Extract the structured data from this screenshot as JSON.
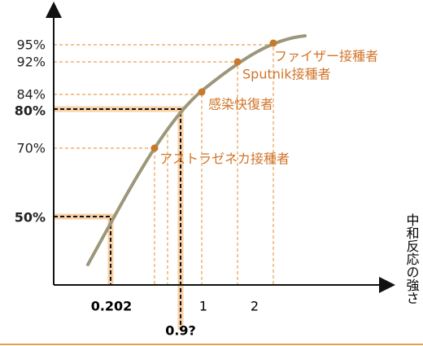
{
  "y_labels": [
    "95%",
    "92%",
    "84%",
    "80%",
    "70%",
    "50%"
  ],
  "x_labels": [
    "0.202",
    "0.9?",
    "1",
    "2"
  ],
  "points": [
    {
      "label": "ファイザー接種者"
    },
    {
      "label": "Sputnik接種者"
    },
    {
      "label": "感染快復者"
    },
    {
      "label": "アストラゼネカ接種者"
    }
  ],
  "axis_title": "中和反応の強さ"
}
